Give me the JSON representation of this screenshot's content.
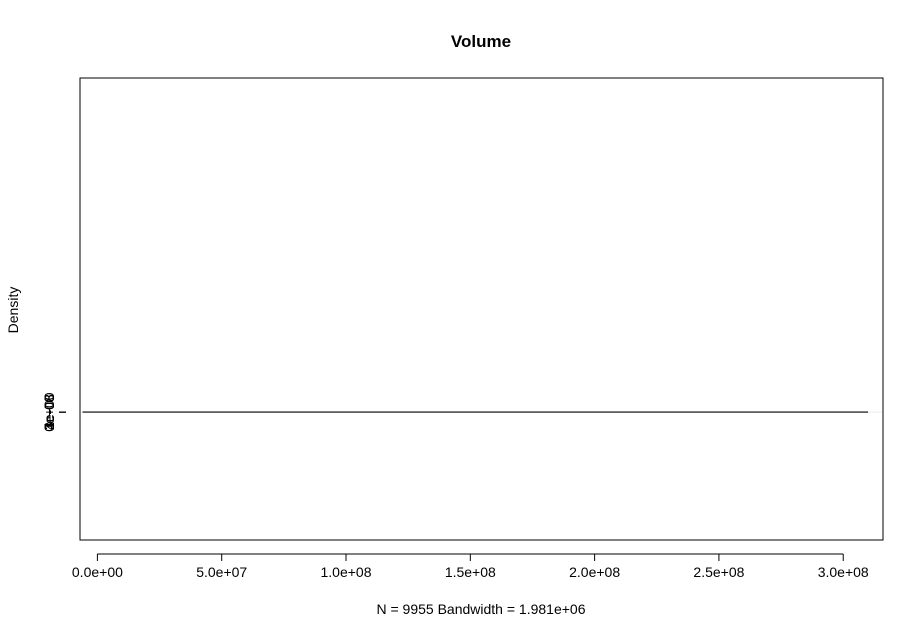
{
  "chart_data": {
    "type": "line",
    "title": "Volume",
    "xlabel": "N = 9955   Bandwidth = 1.981e+06",
    "ylabel": "Density",
    "xlim": [
      -7000000,
      316000000
    ],
    "ylim": [
      -1600000000000000,
      4180000000000000
    ],
    "x_ticks": [
      0,
      50000000,
      100000000,
      150000000,
      200000000,
      250000000,
      300000000
    ],
    "x_tick_labels": [
      "0.0e+00",
      "5.0e+07",
      "1.0e+08",
      "1.5e+08",
      "2.0e+08",
      "2.5e+08",
      "3.0e+08"
    ],
    "y_ticks": [
      0,
      1e-08,
      2e-08,
      3e-08,
      4e-08
    ],
    "y_tick_labels": [
      "0e+00",
      "1e-08",
      "2e-08",
      "3e-08",
      "4e-08"
    ],
    "zero_line": true,
    "grid": false,
    "series": [
      {
        "x": [
          -6000000,
          -4000000,
          -2500000,
          -1500000,
          -500000,
          500000,
          1500000,
          2500000,
          3500000,
          4500000,
          5500000,
          6500000,
          7500000,
          8000000,
          9000000,
          10000000,
          11000000,
          12000000,
          13000000,
          14000000,
          15000000,
          16000000,
          18000000,
          20000000,
          22000000,
          24000000,
          26000000,
          28000000,
          30000000,
          32000000,
          34000000,
          36000000,
          38000000,
          40000000,
          42000000,
          45000000,
          48000000,
          51000000,
          54000000,
          57000000,
          60000000,
          63000000,
          66000000,
          70000000,
          75000000,
          80000000,
          85000000,
          88000000,
          91000000,
          95000000,
          100000000,
          110000000,
          120000000,
          130000000,
          140000000,
          150000000,
          160000000,
          180000000,
          200000000,
          225000000,
          250000000,
          275000000,
          300000000,
          310000000
        ],
        "y": [
          0,
          1.5e-10,
          1e-09,
          3.5e-09,
          1.1e-08,
          2.2e-08,
          3.2e-08,
          3.8e-08,
          3.95e-08,
          4.05e-08,
          4.12e-08,
          4.15e-08,
          4.13e-08,
          4.05e-08,
          3.85e-08,
          3.5e-08,
          3.15e-08,
          2.85e-08,
          2.6e-08,
          2.42e-08,
          2.3e-08,
          2.2e-08,
          2.05e-08,
          1.9e-08,
          1.75e-08,
          1.55e-08,
          1.3e-08,
          1.1e-08,
          9.5e-09,
          8.5e-09,
          7.5e-09,
          6.5e-09,
          5.7e-09,
          5.1e-09,
          4.7e-09,
          4.1e-09,
          3.6e-09,
          2.9e-09,
          2.4e-09,
          2e-09,
          1.8e-09,
          1.5e-09,
          1.2e-09,
          9e-10,
          6e-10,
          4e-10,
          3e-10,
          3.5e-10,
          2e-10,
          2.5e-10,
          1.5e-10,
          1e-10,
          1.2e-10,
          5e-11,
          8e-11,
          3e-11,
          4e-11,
          2e-11,
          3e-11,
          1e-11,
          1.5e-11,
          1e-11,
          1e-11,
          0
        ]
      }
    ]
  }
}
